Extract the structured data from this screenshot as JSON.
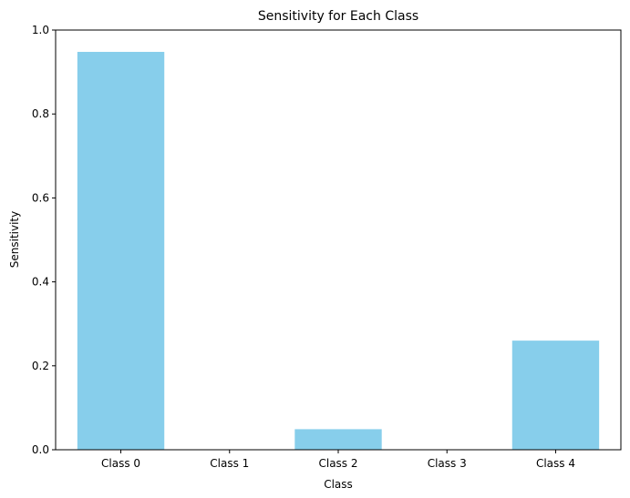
{
  "chart_data": {
    "type": "bar",
    "title": "Sensitivity for Each Class",
    "xlabel": "Class",
    "ylabel": "Sensitivity",
    "categories": [
      "Class 0",
      "Class 1",
      "Class 2",
      "Class 3",
      "Class 4"
    ],
    "values": [
      0.948,
      0.0,
      0.049,
      0.0,
      0.26
    ],
    "ylim": [
      0,
      1.0
    ],
    "yticks": [
      "0.0",
      "0.2",
      "0.4",
      "0.6",
      "0.8",
      "1.0"
    ],
    "bar_color": "#87ceeb",
    "grid": false
  }
}
